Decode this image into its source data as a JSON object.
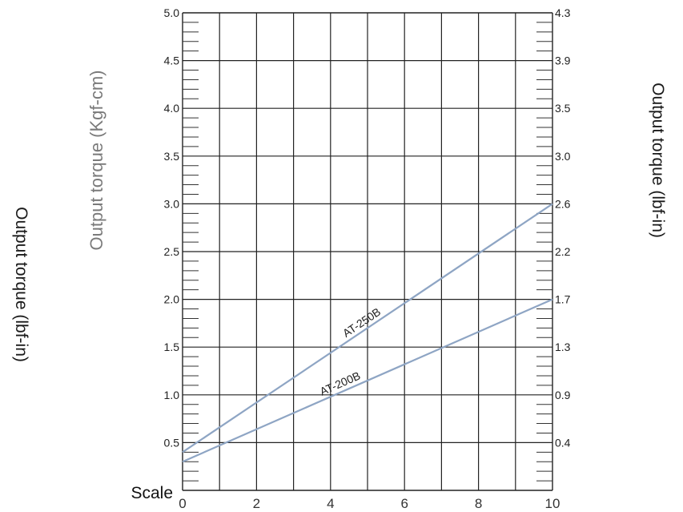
{
  "chart_data": {
    "type": "line",
    "xlabel_prefix": "Scale",
    "x_ticks": [
      "0",
      "2",
      "4",
      "6",
      "8",
      "10"
    ],
    "xlim": [
      0,
      10
    ],
    "ylabel_left": "Output torque (Kgf-cm)",
    "ylim": [
      0,
      5.0
    ],
    "y_ticks_left": [
      "0.5",
      "1.0",
      "1.5",
      "2.0",
      "2.5",
      "3.0",
      "3.5",
      "4.0",
      "4.5",
      "5.0"
    ],
    "y_ticks_left_values": [
      0.5,
      1.0,
      1.5,
      2.0,
      2.5,
      3.0,
      3.5,
      4.0,
      4.5,
      5.0
    ],
    "ylabel_right": "Output torque (lbf-in)",
    "y_ticks_right": [
      "0.4",
      "0.9",
      "1.3",
      "1.7",
      "2.2",
      "2.6",
      "3.0",
      "3.5",
      "3.9",
      "4.3"
    ],
    "ylabel_far_left": "Output torque (lbf-in)",
    "grid": true,
    "series": [
      {
        "name": "AT-250B",
        "x": [
          0,
          10
        ],
        "y": [
          0.4,
          3.0
        ],
        "color": "#8ea5c4"
      },
      {
        "name": "AT-200B",
        "x": [
          0,
          10
        ],
        "y": [
          0.3,
          2.0
        ],
        "color": "#8ea5c4"
      }
    ]
  }
}
